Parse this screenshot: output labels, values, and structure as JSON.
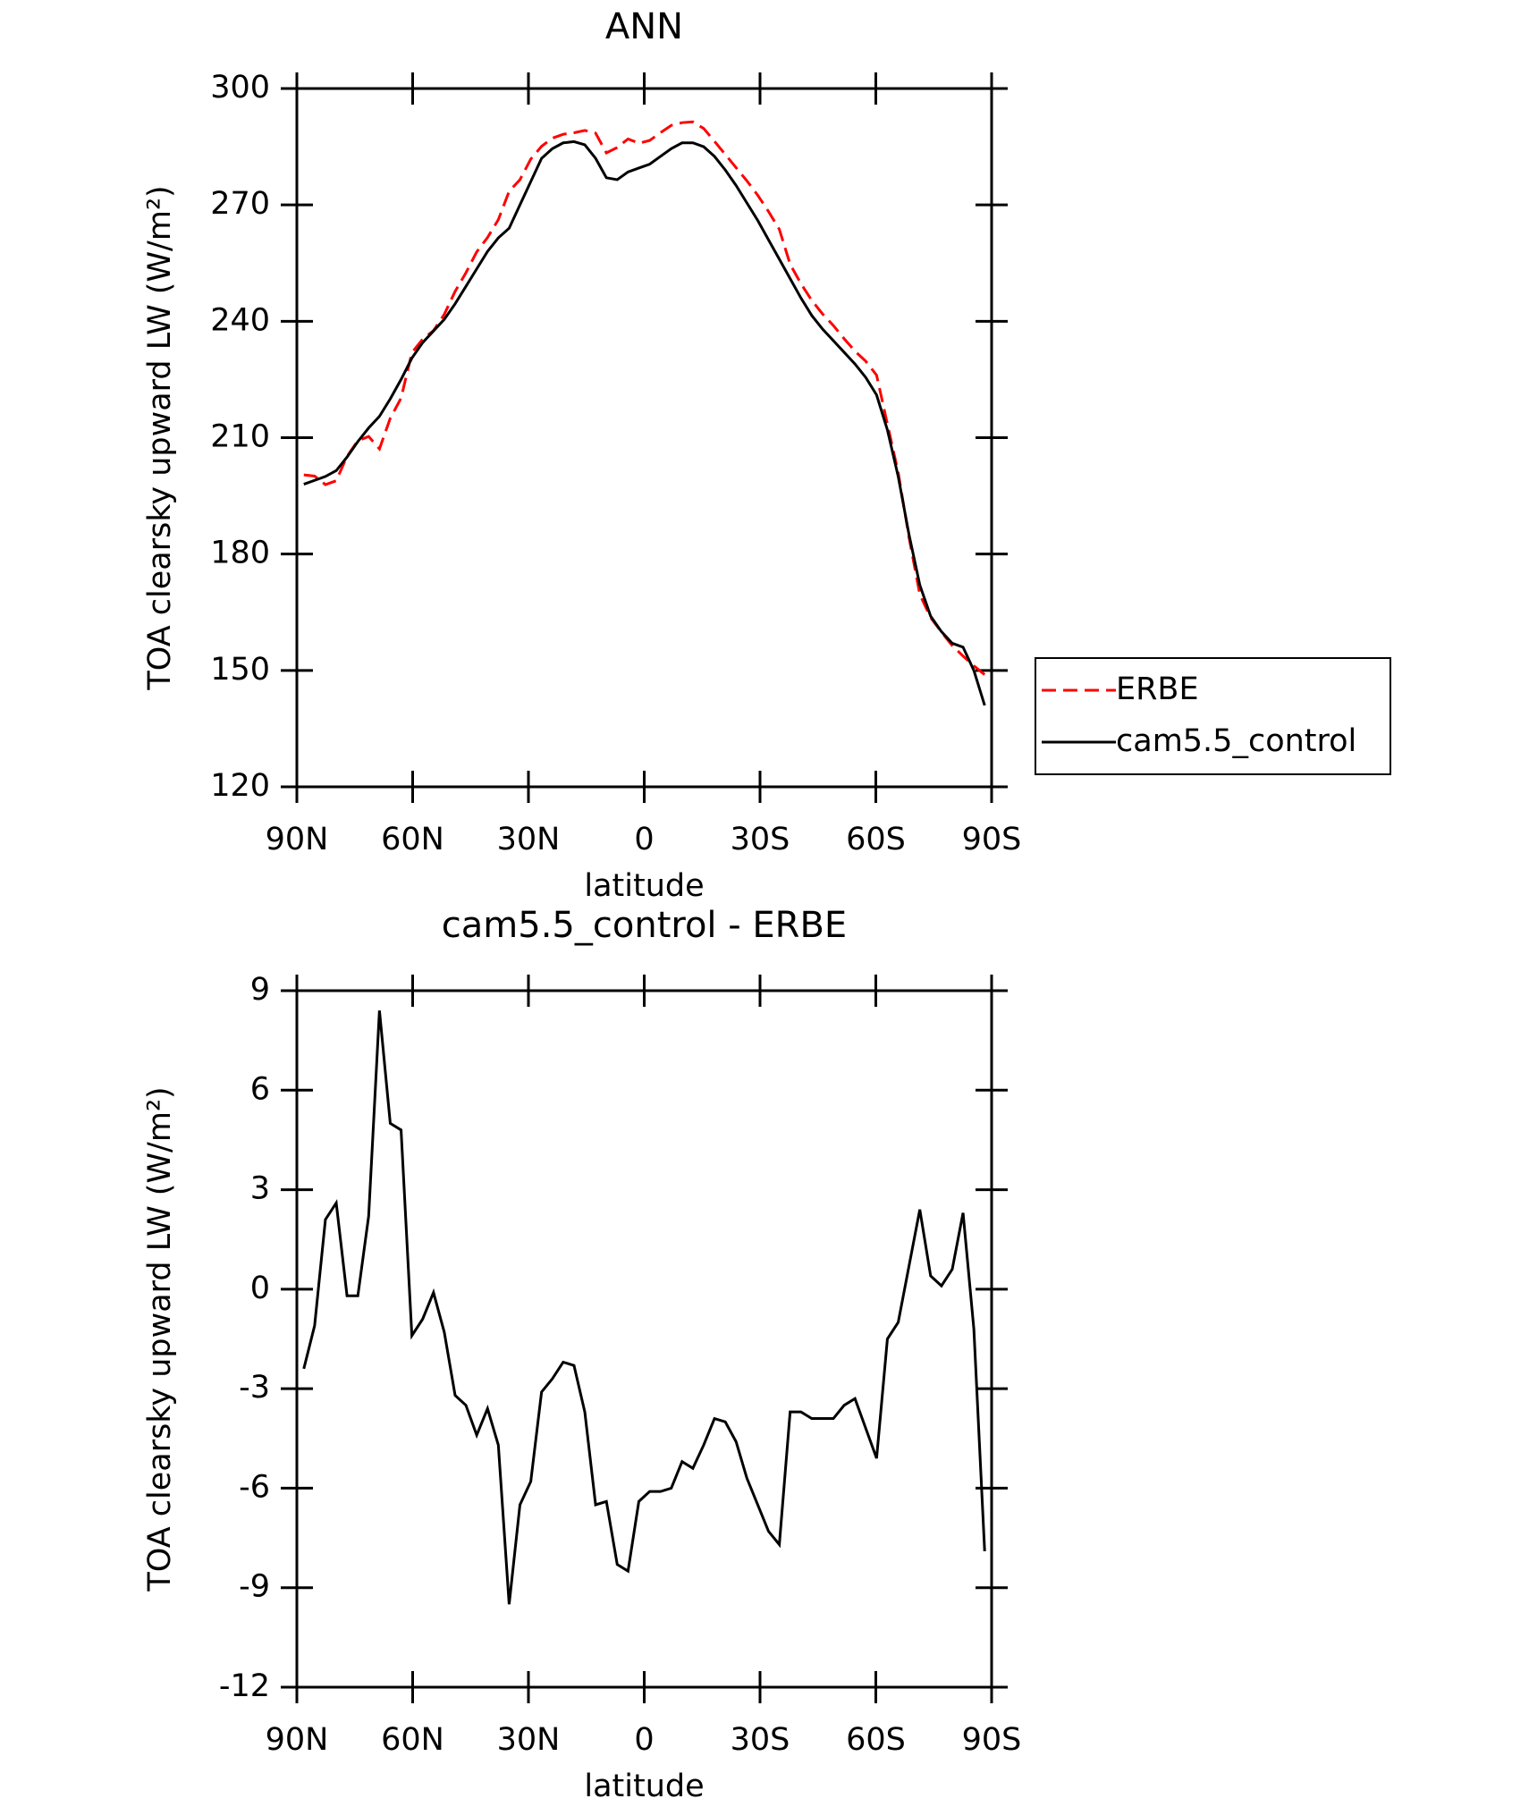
{
  "chart_data": [
    {
      "type": "line",
      "title": "ANN",
      "xlabel": "latitude",
      "ylabel": "TOA clearsky upward LW (W/m²)",
      "x": [
        88.2,
        85.4,
        82.6,
        79.8,
        77,
        74.2,
        71.4,
        68.6,
        65.8,
        63,
        60.2,
        57.4,
        54.6,
        51.8,
        49,
        46.2,
        43.4,
        40.6,
        37.8,
        35,
        32.2,
        29.4,
        26.6,
        23.8,
        21,
        18.2,
        15.4,
        12.6,
        9.8,
        7,
        4.2,
        1.4,
        -1.4,
        -4.2,
        -7,
        -9.8,
        -12.6,
        -15.4,
        -18.2,
        -21,
        -23.8,
        -26.6,
        -29.4,
        -32.2,
        -35,
        -37.8,
        -40.6,
        -43.4,
        -46.2,
        -49,
        -51.8,
        -54.6,
        -57.4,
        -60.2,
        -63,
        -65.8,
        -68.6,
        -71.4,
        -74.2,
        -77,
        -79.8,
        -82.6,
        -85.4,
        -88.2
      ],
      "series": [
        {
          "name": "ERBE",
          "color": "#ff0000",
          "line_style": "dashed",
          "values": [
            200.4,
            200.1,
            197.9,
            198.9,
            205.2,
            209.2,
            210.3,
            207.1,
            215,
            220.2,
            231.9,
            235.4,
            237.6,
            241.8,
            247.7,
            252.5,
            257.9,
            261.6,
            266.2,
            273.5,
            276.5,
            281.8,
            285.1,
            287.2,
            288.2,
            288.6,
            289.2,
            288.5,
            283.4,
            284.8,
            287,
            285.9,
            286.6,
            288.6,
            290.5,
            291.2,
            291.4,
            289.7,
            286.4,
            283,
            279.6,
            276.2,
            272.5,
            268.3,
            263.7,
            254.7,
            249.7,
            245.4,
            241.9,
            238.9,
            235.5,
            232.3,
            229.7,
            226.1,
            213.5,
            201,
            184.3,
            169.6,
            163.6,
            159.9,
            156.4,
            153.7,
            151.2,
            148.9
          ]
        },
        {
          "name": "cam5.5_control",
          "color": "#000000",
          "line_style": "solid",
          "values": [
            198,
            199,
            200,
            201.5,
            205,
            209,
            212.5,
            215.5,
            220,
            225,
            230.5,
            234.5,
            237.5,
            240.5,
            244.5,
            249,
            253.5,
            258,
            261.5,
            264,
            270,
            276,
            282,
            284.5,
            286,
            286.3,
            285.5,
            282,
            277,
            276.5,
            278.5,
            279.5,
            280.5,
            282.5,
            284.5,
            286,
            286,
            285,
            282.5,
            279,
            275,
            270.5,
            266,
            261,
            256,
            251,
            246,
            241.5,
            238,
            235,
            232,
            229,
            225.5,
            221,
            212,
            200,
            185,
            172,
            164,
            160,
            157,
            156,
            150,
            141
          ]
        }
      ],
      "xlim": [
        90,
        -90
      ],
      "xticks": [
        {
          "value": 90,
          "label": "90N"
        },
        {
          "value": 60,
          "label": "60N"
        },
        {
          "value": 30,
          "label": "30N"
        },
        0,
        {
          "value": -30,
          "label": "30S"
        },
        {
          "value": -60,
          "label": "60S"
        },
        {
          "value": -90,
          "label": "90S"
        }
      ],
      "ylim": [
        120,
        300
      ],
      "yticks": [
        120,
        150,
        180,
        210,
        240,
        270,
        300
      ],
      "legend": "right"
    },
    {
      "type": "line",
      "title": "cam5.5_control - ERBE",
      "xlabel": "latitude",
      "ylabel": "TOA clearsky upward LW (W/m²)",
      "x": [
        88.2,
        85.4,
        82.6,
        79.8,
        77,
        74.2,
        71.4,
        68.6,
        65.8,
        63,
        60.2,
        57.4,
        54.6,
        51.8,
        49,
        46.2,
        43.4,
        40.6,
        37.8,
        35,
        32.2,
        29.4,
        26.6,
        23.8,
        21,
        18.2,
        15.4,
        12.6,
        9.8,
        7,
        4.2,
        1.4,
        -1.4,
        -4.2,
        -7,
        -9.8,
        -12.6,
        -15.4,
        -18.2,
        -21,
        -23.8,
        -26.6,
        -29.4,
        -32.2,
        -35,
        -37.8,
        -40.6,
        -43.4,
        -46.2,
        -49,
        -51.8,
        -54.6,
        -57.4,
        -60.2,
        -63,
        -65.8,
        -68.6,
        -71.4,
        -74.2,
        -77,
        -79.8,
        -82.6,
        -85.4,
        -88.2
      ],
      "series": [
        {
          "color": "#000000",
          "line_style": "solid",
          "values": [
            -2.4,
            -1.1,
            2.1,
            2.6,
            -0.2,
            -0.2,
            2.2,
            8.4,
            5,
            4.8,
            -1.4,
            -0.9,
            -0.1,
            -1.3,
            -3.2,
            -3.5,
            -4.4,
            -3.6,
            -4.7,
            -9.5,
            -6.5,
            -5.8,
            -3.1,
            -2.7,
            -2.2,
            -2.3,
            -3.7,
            -6.5,
            -6.4,
            -8.3,
            -8.5,
            -6.4,
            -6.1,
            -6.1,
            -6,
            -5.2,
            -5.4,
            -4.7,
            -3.9,
            -4,
            -4.6,
            -5.7,
            -6.5,
            -7.3,
            -7.7,
            -3.7,
            -3.7,
            -3.9,
            -3.9,
            -3.9,
            -3.5,
            -3.3,
            -4.2,
            -5.1,
            -1.5,
            -1,
            0.7,
            2.4,
            0.4,
            0.1,
            0.6,
            2.3,
            -1.2,
            -7.9
          ]
        }
      ],
      "xlim": [
        90,
        -90
      ],
      "xticks": [
        {
          "value": 90,
          "label": "90N"
        },
        {
          "value": 60,
          "label": "60N"
        },
        {
          "value": 30,
          "label": "30N"
        },
        0,
        {
          "value": -30,
          "label": "30S"
        },
        {
          "value": -60,
          "label": "60S"
        },
        {
          "value": -90,
          "label": "90S"
        }
      ],
      "ylim": [
        -12,
        9
      ],
      "yticks": [
        -12,
        -9,
        -6,
        -3,
        0,
        3,
        6,
        9
      ]
    }
  ]
}
